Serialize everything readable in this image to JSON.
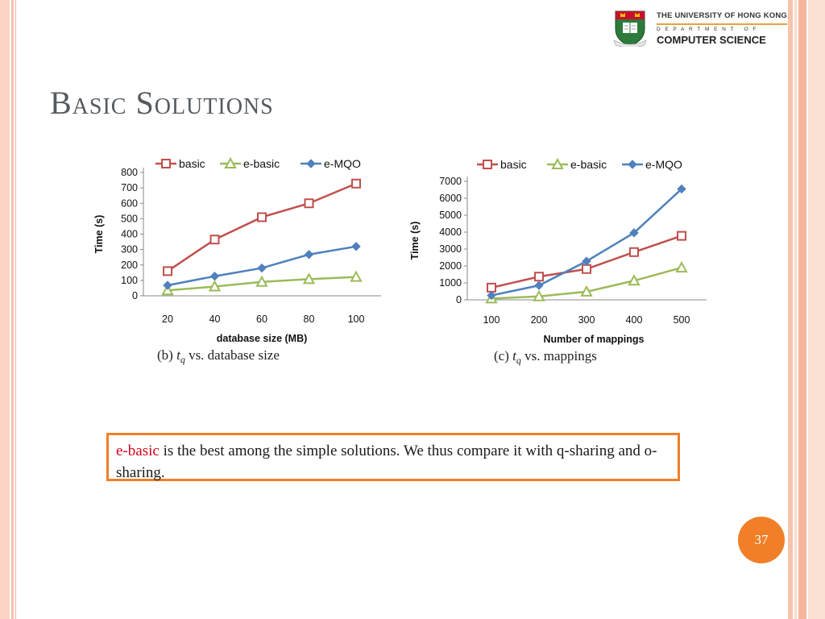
{
  "colors": {
    "accent": "#f07f28",
    "highlight": "#d0021b",
    "basic": "#c0504d",
    "e_basic": "#9bbb59",
    "e_mqo": "#4f81bd"
  },
  "logo": {
    "university": "THE UNIVERSITY OF HONG KONG",
    "department_label": "DEPARTMENT OF",
    "department_name": "COMPUTER SCIENCE"
  },
  "slide": {
    "title": "Basic Solutions",
    "page_number": "37"
  },
  "callout": {
    "highlight": "e-basic",
    "text": " is the best among the simple solutions. We thus compare it with q-sharing and o-sharing."
  },
  "chart_data": [
    {
      "type": "line",
      "caption": "(b) t_q vs. database size",
      "xlabel": "database size (MB)",
      "ylabel": "Time (s)",
      "x": [
        20,
        40,
        60,
        80,
        100
      ],
      "ylim": [
        0,
        800
      ],
      "yticks": [
        0,
        100,
        200,
        300,
        400,
        500,
        600,
        700,
        800
      ],
      "legend_position": "top",
      "series": [
        {
          "name": "basic",
          "marker": "square",
          "values": [
            160,
            365,
            510,
            600,
            728
          ]
        },
        {
          "name": "e-basic",
          "marker": "triangle",
          "values": [
            35,
            60,
            90,
            108,
            122
          ]
        },
        {
          "name": "e-MQO",
          "marker": "diamond",
          "values": [
            68,
            127,
            180,
            268,
            320
          ]
        }
      ]
    },
    {
      "type": "line",
      "caption": "(c) t_q vs. mappings",
      "xlabel": "Number of mappings",
      "ylabel": "Time (s)",
      "x": [
        100,
        200,
        300,
        400,
        500
      ],
      "ylim": [
        0,
        7000
      ],
      "yticks": [
        0,
        1000,
        2000,
        3000,
        4000,
        5000,
        6000,
        7000
      ],
      "legend_position": "top",
      "series": [
        {
          "name": "basic",
          "marker": "square",
          "values": [
            720,
            1370,
            1820,
            2820,
            3780
          ]
        },
        {
          "name": "e-basic",
          "marker": "triangle",
          "values": [
            80,
            200,
            480,
            1130,
            1900
          ]
        },
        {
          "name": "e-MQO",
          "marker": "diamond",
          "values": [
            260,
            850,
            2280,
            3960,
            6550
          ]
        }
      ]
    }
  ]
}
